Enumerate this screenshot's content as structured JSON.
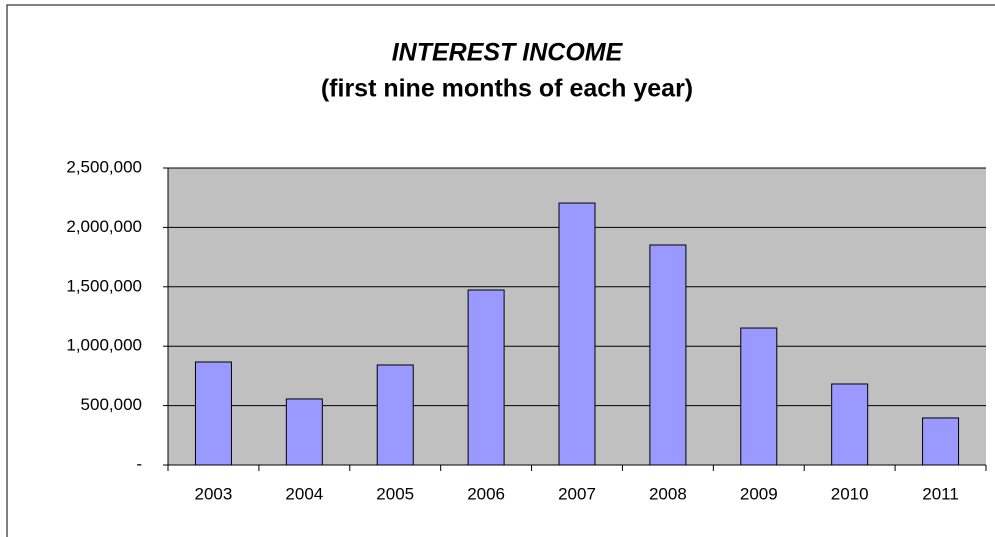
{
  "chart_data": {
    "type": "bar",
    "title": "INTEREST INCOME",
    "subtitle": "(first nine months of each year)",
    "categories": [
      "2003",
      "2004",
      "2005",
      "2006",
      "2007",
      "2008",
      "2009",
      "2010",
      "2011"
    ],
    "values": [
      867000,
      556000,
      842000,
      1473000,
      2205000,
      1852000,
      1153000,
      682000,
      396000
    ],
    "color": "#9999ff",
    "ylim": [
      0,
      2500000
    ],
    "yticks": [
      {
        "value": 0,
        "label": "-"
      },
      {
        "value": 500000,
        "label": "500,000"
      },
      {
        "value": 1000000,
        "label": "1,000,000"
      },
      {
        "value": 1500000,
        "label": "1,500,000"
      },
      {
        "value": 2000000,
        "label": "2,000,000"
      },
      {
        "value": 2500000,
        "label": "2,500,000"
      }
    ],
    "grid": true
  }
}
